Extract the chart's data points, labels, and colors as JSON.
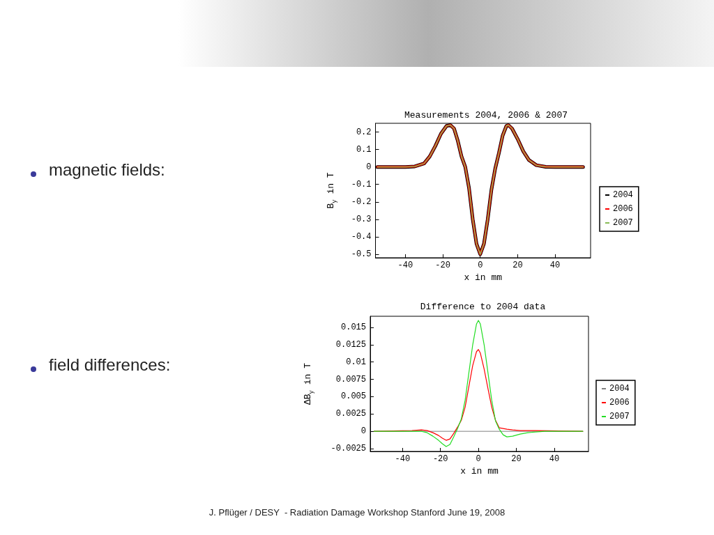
{
  "chart_data": [
    {
      "type": "line",
      "title": "Measurements 2004, 2006 & 2007",
      "xlabel": "x in mm",
      "ylabel": "B$_{y}$ in T",
      "annotations": [
        "magnetic fields:"
      ],
      "xlim": [
        -56,
        59
      ],
      "xticks": [
        -40,
        -20,
        0,
        20,
        40
      ],
      "ylim": [
        -0.52,
        0.25
      ],
      "yticks": [
        -0.5,
        -0.4,
        -0.3,
        -0.2,
        -0.1,
        0,
        0.1,
        0.2
      ],
      "grid": false,
      "legend": "right",
      "marker": "none",
      "series": [
        {
          "name": "2004",
          "color": "#000000",
          "x": [
            -55,
            -40,
            -35,
            -30,
            -27,
            -24,
            -21,
            -18,
            -16,
            -14,
            -12,
            -10,
            -8,
            -6,
            -4,
            -2,
            0,
            2,
            4,
            6,
            8,
            10,
            12,
            14,
            15,
            17,
            20,
            23,
            26,
            30,
            35,
            40,
            55
          ],
          "values": [
            0,
            0,
            0.003,
            0.02,
            0.06,
            0.12,
            0.19,
            0.235,
            0.24,
            0.22,
            0.15,
            0.06,
            0,
            -0.12,
            -0.3,
            -0.44,
            -0.5,
            -0.44,
            -0.3,
            -0.13,
            -0.01,
            0.08,
            0.18,
            0.235,
            0.24,
            0.22,
            0.16,
            0.09,
            0.04,
            0.01,
            0.001,
            0,
            0
          ]
        },
        {
          "name": "2006",
          "color": "#ff0000",
          "x": [
            -55,
            -40,
            -35,
            -30,
            -27,
            -24,
            -21,
            -18,
            -16,
            -14,
            -12,
            -10,
            -8,
            -6,
            -4,
            -2,
            0,
            2,
            4,
            6,
            8,
            10,
            12,
            14,
            15,
            17,
            20,
            23,
            26,
            30,
            35,
            40,
            55
          ],
          "values": [
            0,
            0,
            0.003,
            0.02,
            0.06,
            0.12,
            0.19,
            0.235,
            0.24,
            0.22,
            0.15,
            0.06,
            0,
            -0.12,
            -0.3,
            -0.44,
            -0.5,
            -0.44,
            -0.3,
            -0.13,
            -0.01,
            0.08,
            0.18,
            0.235,
            0.24,
            0.22,
            0.16,
            0.09,
            0.04,
            0.01,
            0.001,
            0,
            0
          ]
        },
        {
          "name": "2007",
          "color": "#88bb55",
          "x": [
            -55,
            -40,
            -35,
            -30,
            -27,
            -24,
            -21,
            -18,
            -16,
            -14,
            -12,
            -10,
            -8,
            -6,
            -4,
            -2,
            0,
            2,
            4,
            6,
            8,
            10,
            12,
            14,
            15,
            17,
            20,
            23,
            26,
            30,
            35,
            40,
            55
          ],
          "values": [
            0,
            0,
            0.003,
            0.02,
            0.06,
            0.12,
            0.19,
            0.235,
            0.24,
            0.22,
            0.15,
            0.06,
            0,
            -0.12,
            -0.3,
            -0.44,
            -0.5,
            -0.44,
            -0.3,
            -0.13,
            -0.01,
            0.08,
            0.18,
            0.235,
            0.24,
            0.22,
            0.16,
            0.09,
            0.04,
            0.01,
            0.001,
            0,
            0
          ]
        }
      ]
    },
    {
      "type": "line",
      "title": "Difference to 2004 data",
      "xlabel": "x in mm",
      "ylabel": "ΔB$_{y}$ in T",
      "annotations": [
        "field differences:",
        "J. Pflüger / DESY  - Radiation Damage Workshop Stanford June 19, 2008"
      ],
      "xlim": [
        -57,
        58
      ],
      "xticks": [
        -40,
        -20,
        0,
        20,
        40
      ],
      "ylim": [
        -0.0029,
        0.0166
      ],
      "yticks": [
        -0.0025,
        0,
        0.0025,
        0.005,
        0.0075,
        0.01,
        0.0125,
        0.015
      ],
      "grid": false,
      "legend": "right",
      "marker": "none",
      "series": [
        {
          "name": "2004",
          "color": "#808080",
          "x": [
            -55,
            55
          ],
          "values": [
            0,
            0
          ]
        },
        {
          "name": "2006",
          "color": "#ff0000",
          "x": [
            -55,
            -35,
            -30,
            -27,
            -24,
            -21,
            -19,
            -17,
            -15,
            -13,
            -11,
            -9,
            -7,
            -5,
            -3,
            -1,
            0,
            1,
            3,
            5,
            7,
            9,
            11,
            13,
            15,
            18,
            22,
            26,
            30,
            55
          ],
          "values": [
            0,
            0.0001,
            0.0002,
            0.0001,
            -0.0002,
            -0.0006,
            -0.001,
            -0.0013,
            -0.0011,
            -0.0003,
            0.0006,
            0.0016,
            0.0035,
            0.0065,
            0.0095,
            0.0115,
            0.0118,
            0.0113,
            0.009,
            0.0062,
            0.0035,
            0.0016,
            0.0005,
            0.0004,
            0.0003,
            0.0002,
            0.0001,
            0.0001,
            0.0001,
            0
          ]
        },
        {
          "name": "2007",
          "color": "#22dd22",
          "x": [
            -55,
            -30,
            -27,
            -24,
            -21,
            -19,
            -17,
            -15,
            -13,
            -11,
            -9,
            -7,
            -5,
            -3,
            -1,
            0,
            1,
            3,
            5,
            7,
            9,
            11,
            13,
            15,
            18,
            22,
            26,
            30,
            35,
            55
          ],
          "values": [
            0,
            0,
            -0.0002,
            -0.0007,
            -0.0013,
            -0.0018,
            -0.0022,
            -0.0019,
            -0.0008,
            0.0004,
            0.0018,
            0.0045,
            0.0085,
            0.0125,
            0.0155,
            0.016,
            0.0155,
            0.0125,
            0.0085,
            0.0045,
            0.0015,
            0.0003,
            -0.0005,
            -0.0008,
            -0.0007,
            -0.0004,
            -0.0002,
            -0.0001,
            0,
            0
          ]
        }
      ]
    }
  ]
}
